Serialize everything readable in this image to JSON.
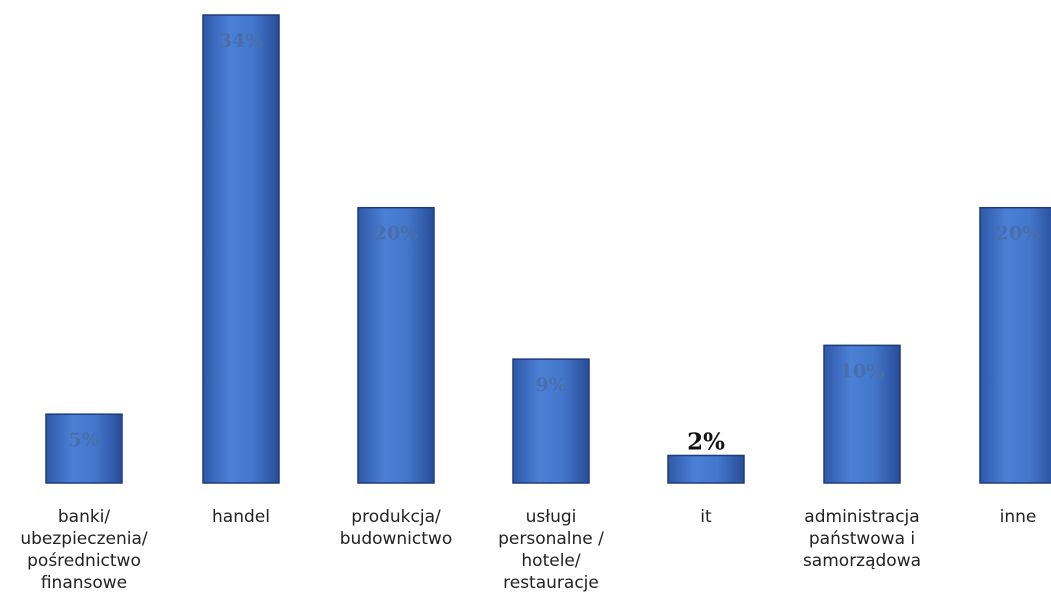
{
  "chart_data": {
    "type": "bar",
    "categories": [
      [
        "banki/",
        "ubezpieczenia/",
        "pośrednictwo",
        "finansowe"
      ],
      [
        "handel"
      ],
      [
        "produkcja/",
        "budownictwo"
      ],
      [
        "usługi",
        "personalne /",
        "hotele/",
        "restauracje"
      ],
      [
        "it"
      ],
      [
        "administracja",
        "państwowa i",
        "samorządowa"
      ],
      [
        "inne"
      ]
    ],
    "values": [
      5,
      34,
      20,
      9,
      2,
      10,
      20
    ],
    "data_labels": [
      "5%",
      "34%",
      "20%",
      "9%",
      "2%",
      "10%",
      "20%"
    ],
    "ylim": [
      0,
      34
    ],
    "title": "",
    "xlabel": "",
    "ylabel": "",
    "bar_color": "#3f6fc2",
    "grid": false,
    "legend": "none"
  }
}
